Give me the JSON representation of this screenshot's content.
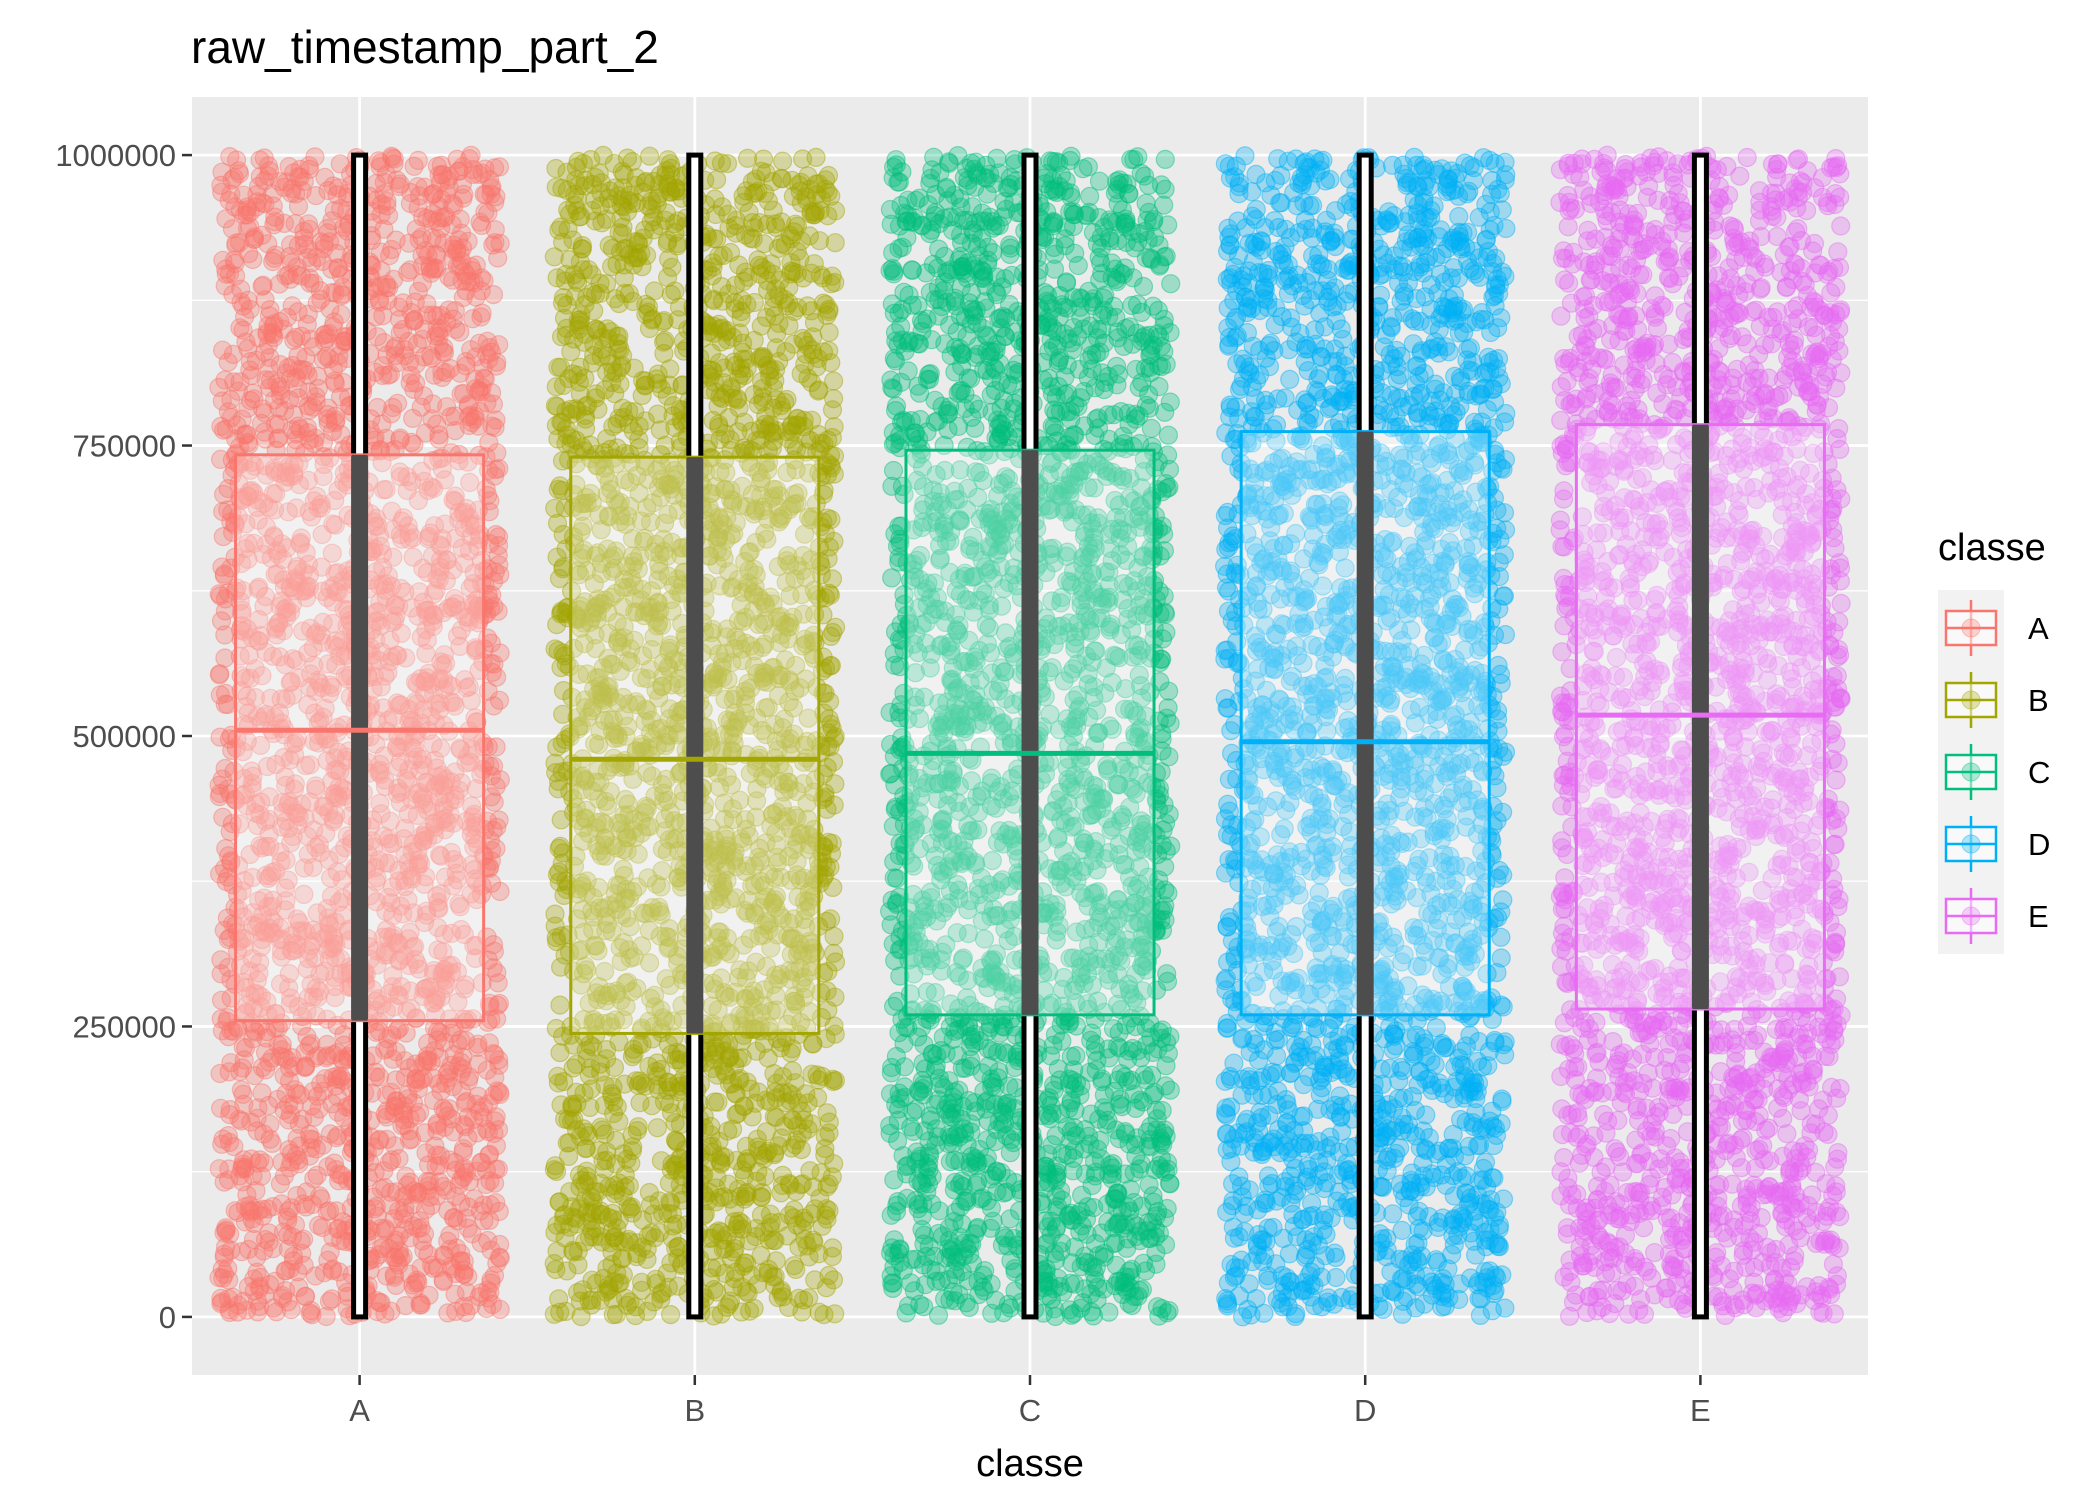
{
  "chart_data": {
    "type": "box",
    "title": "raw_timestamp_part_2",
    "xlabel": "classe",
    "ylabel": "",
    "ylim": [
      -50000,
      1050000
    ],
    "yticks": [
      0,
      250000,
      500000,
      750000,
      1000000
    ],
    "ytick_labels": [
      "0",
      "250000",
      "500000",
      "750000",
      "1000000"
    ],
    "categories": [
      "A",
      "B",
      "C",
      "D",
      "E"
    ],
    "grid": true,
    "overlay": "jittered points",
    "legend": {
      "title": "classe",
      "position": "right",
      "entries": [
        "A",
        "B",
        "C",
        "D",
        "E"
      ]
    },
    "series": [
      {
        "name": "A",
        "color": "#F8766D",
        "min": 0,
        "q1": 255000,
        "median": 505000,
        "q3": 742000,
        "max": 1000000
      },
      {
        "name": "B",
        "color": "#A3A500",
        "min": 0,
        "q1": 244000,
        "median": 480000,
        "q3": 740000,
        "max": 1000000
      },
      {
        "name": "C",
        "color": "#00BF7D",
        "min": 0,
        "q1": 260000,
        "median": 485000,
        "q3": 746000,
        "max": 1000000
      },
      {
        "name": "D",
        "color": "#00B0F6",
        "min": 0,
        "q1": 260000,
        "median": 495000,
        "q3": 762000,
        "max": 1000000
      },
      {
        "name": "E",
        "color": "#E76BF3",
        "min": 0,
        "q1": 265000,
        "median": 518000,
        "q3": 768000,
        "max": 1000000
      }
    ]
  }
}
